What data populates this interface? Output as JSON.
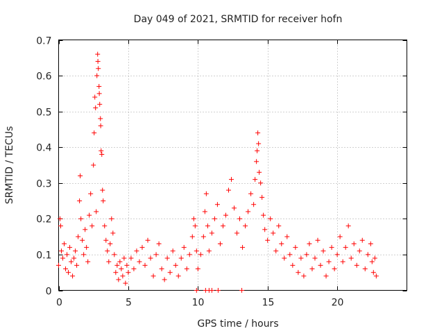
{
  "chart_data": {
    "type": "scatter",
    "title": "Day 049 of 2021, SRMTID for receiver hofn",
    "xlabel": "GPS time / hours",
    "ylabel": "SRMTID / TECUs",
    "xlim": [
      0,
      25
    ],
    "ylim": [
      0,
      0.7
    ],
    "xticks": [
      0,
      5,
      10,
      15,
      20
    ],
    "yticks": [
      0,
      0.1,
      0.2,
      0.3,
      0.4,
      0.5,
      0.6,
      0.7
    ],
    "xtick_labels": [
      "0",
      "5",
      "10",
      "15",
      "20"
    ],
    "ytick_labels": [
      "0",
      "0.1",
      "0.2",
      "0.3",
      "0.4",
      "0.5",
      "0.6",
      "0.7"
    ],
    "grid": true,
    "marker": "+",
    "color": "#ff0000",
    "series": [
      {
        "name": "SRMTID",
        "points": [
          [
            0.0,
            0.07
          ],
          [
            0.1,
            0.2
          ],
          [
            0.15,
            0.18
          ],
          [
            0.2,
            0.11
          ],
          [
            0.3,
            0.09
          ],
          [
            0.4,
            0.13
          ],
          [
            0.5,
            0.06
          ],
          [
            0.6,
            0.1
          ],
          [
            0.7,
            0.05
          ],
          [
            0.8,
            0.12
          ],
          [
            0.9,
            0.08
          ],
          [
            1.0,
            0.04
          ],
          [
            1.1,
            0.09
          ],
          [
            1.2,
            0.11
          ],
          [
            1.3,
            0.07
          ],
          [
            1.4,
            0.15
          ],
          [
            1.5,
            0.25
          ],
          [
            1.55,
            0.32
          ],
          [
            1.6,
            0.2
          ],
          [
            1.7,
            0.14
          ],
          [
            1.8,
            0.1
          ],
          [
            1.9,
            0.17
          ],
          [
            2.0,
            0.12
          ],
          [
            2.1,
            0.08
          ],
          [
            2.2,
            0.21
          ],
          [
            2.3,
            0.27
          ],
          [
            2.4,
            0.18
          ],
          [
            2.5,
            0.35
          ],
          [
            2.55,
            0.44
          ],
          [
            2.6,
            0.54
          ],
          [
            2.65,
            0.51
          ],
          [
            2.7,
            0.22
          ],
          [
            2.75,
            0.6
          ],
          [
            2.8,
            0.66
          ],
          [
            2.82,
            0.64
          ],
          [
            2.85,
            0.62
          ],
          [
            2.9,
            0.57
          ],
          [
            2.92,
            0.55
          ],
          [
            2.95,
            0.52
          ],
          [
            3.0,
            0.48
          ],
          [
            3.02,
            0.46
          ],
          [
            3.05,
            0.39
          ],
          [
            3.1,
            0.38
          ],
          [
            3.15,
            0.28
          ],
          [
            3.2,
            0.25
          ],
          [
            3.3,
            0.18
          ],
          [
            3.4,
            0.14
          ],
          [
            3.5,
            0.11
          ],
          [
            3.6,
            0.08
          ],
          [
            3.7,
            0.13
          ],
          [
            3.8,
            0.2
          ],
          [
            3.9,
            0.16
          ],
          [
            4.0,
            0.1
          ],
          [
            4.1,
            0.05
          ],
          [
            4.2,
            0.07
          ],
          [
            4.3,
            0.03
          ],
          [
            4.4,
            0.08
          ],
          [
            4.5,
            0.06
          ],
          [
            4.6,
            0.04
          ],
          [
            4.7,
            0.09
          ],
          [
            4.8,
            0.02
          ],
          [
            4.9,
            0.07
          ],
          [
            5.0,
            0.05
          ],
          [
            5.2,
            0.09
          ],
          [
            5.4,
            0.06
          ],
          [
            5.6,
            0.11
          ],
          [
            5.8,
            0.08
          ],
          [
            6.0,
            0.12
          ],
          [
            6.2,
            0.07
          ],
          [
            6.4,
            0.14
          ],
          [
            6.6,
            0.09
          ],
          [
            6.8,
            0.04
          ],
          [
            7.0,
            0.1
          ],
          [
            7.2,
            0.13
          ],
          [
            7.4,
            0.06
          ],
          [
            7.6,
            0.03
          ],
          [
            7.8,
            0.09
          ],
          [
            8.0,
            0.05
          ],
          [
            8.2,
            0.11
          ],
          [
            8.4,
            0.07
          ],
          [
            8.6,
            0.04
          ],
          [
            8.8,
            0.09
          ],
          [
            9.0,
            0.12
          ],
          [
            9.2,
            0.06
          ],
          [
            9.4,
            0.1
          ],
          [
            9.6,
            0.15
          ],
          [
            9.7,
            0.2
          ],
          [
            9.8,
            0.18
          ],
          [
            9.9,
            0.11
          ],
          [
            10.0,
            0.06
          ],
          [
            10.2,
            0.1
          ],
          [
            10.4,
            0.15
          ],
          [
            10.5,
            0.22
          ],
          [
            10.6,
            0.27
          ],
          [
            10.7,
            0.18
          ],
          [
            10.8,
            0.11
          ],
          [
            11.0,
            0.16
          ],
          [
            11.2,
            0.2
          ],
          [
            11.4,
            0.24
          ],
          [
            11.6,
            0.13
          ],
          [
            11.8,
            0.18
          ],
          [
            12.0,
            0.21
          ],
          [
            12.2,
            0.28
          ],
          [
            12.4,
            0.31
          ],
          [
            12.6,
            0.23
          ],
          [
            12.8,
            0.16
          ],
          [
            13.0,
            0.2
          ],
          [
            13.2,
            0.12
          ],
          [
            13.4,
            0.18
          ],
          [
            13.6,
            0.22
          ],
          [
            13.8,
            0.27
          ],
          [
            14.0,
            0.24
          ],
          [
            14.1,
            0.31
          ],
          [
            14.2,
            0.36
          ],
          [
            14.25,
            0.39
          ],
          [
            14.3,
            0.44
          ],
          [
            14.35,
            0.41
          ],
          [
            14.4,
            0.33
          ],
          [
            14.5,
            0.3
          ],
          [
            14.6,
            0.26
          ],
          [
            14.7,
            0.21
          ],
          [
            14.8,
            0.17
          ],
          [
            15.0,
            0.14
          ],
          [
            15.2,
            0.2
          ],
          [
            15.4,
            0.16
          ],
          [
            15.6,
            0.11
          ],
          [
            15.8,
            0.18
          ],
          [
            16.0,
            0.13
          ],
          [
            16.2,
            0.09
          ],
          [
            16.4,
            0.15
          ],
          [
            16.6,
            0.1
          ],
          [
            16.8,
            0.07
          ],
          [
            17.0,
            0.12
          ],
          [
            17.2,
            0.05
          ],
          [
            17.4,
            0.09
          ],
          [
            17.6,
            0.04
          ],
          [
            17.8,
            0.1
          ],
          [
            18.0,
            0.13
          ],
          [
            18.2,
            0.06
          ],
          [
            18.4,
            0.09
          ],
          [
            18.6,
            0.14
          ],
          [
            18.8,
            0.07
          ],
          [
            19.0,
            0.11
          ],
          [
            19.2,
            0.04
          ],
          [
            19.4,
            0.08
          ],
          [
            19.6,
            0.12
          ],
          [
            19.8,
            0.06
          ],
          [
            20.0,
            0.1
          ],
          [
            20.2,
            0.15
          ],
          [
            20.4,
            0.08
          ],
          [
            20.6,
            0.12
          ],
          [
            20.8,
            0.18
          ],
          [
            21.0,
            0.09
          ],
          [
            21.2,
            0.13
          ],
          [
            21.4,
            0.07
          ],
          [
            21.6,
            0.11
          ],
          [
            21.8,
            0.14
          ],
          [
            22.0,
            0.06
          ],
          [
            22.2,
            0.1
          ],
          [
            22.4,
            0.13
          ],
          [
            22.5,
            0.08
          ],
          [
            22.6,
            0.05
          ],
          [
            22.7,
            0.09
          ],
          [
            22.8,
            0.04
          ],
          [
            9.9,
            0.0
          ],
          [
            10.55,
            0.0
          ],
          [
            10.8,
            0.0
          ],
          [
            11.0,
            0.0
          ],
          [
            11.45,
            0.0
          ],
          [
            13.15,
            0.0
          ]
        ]
      }
    ]
  }
}
